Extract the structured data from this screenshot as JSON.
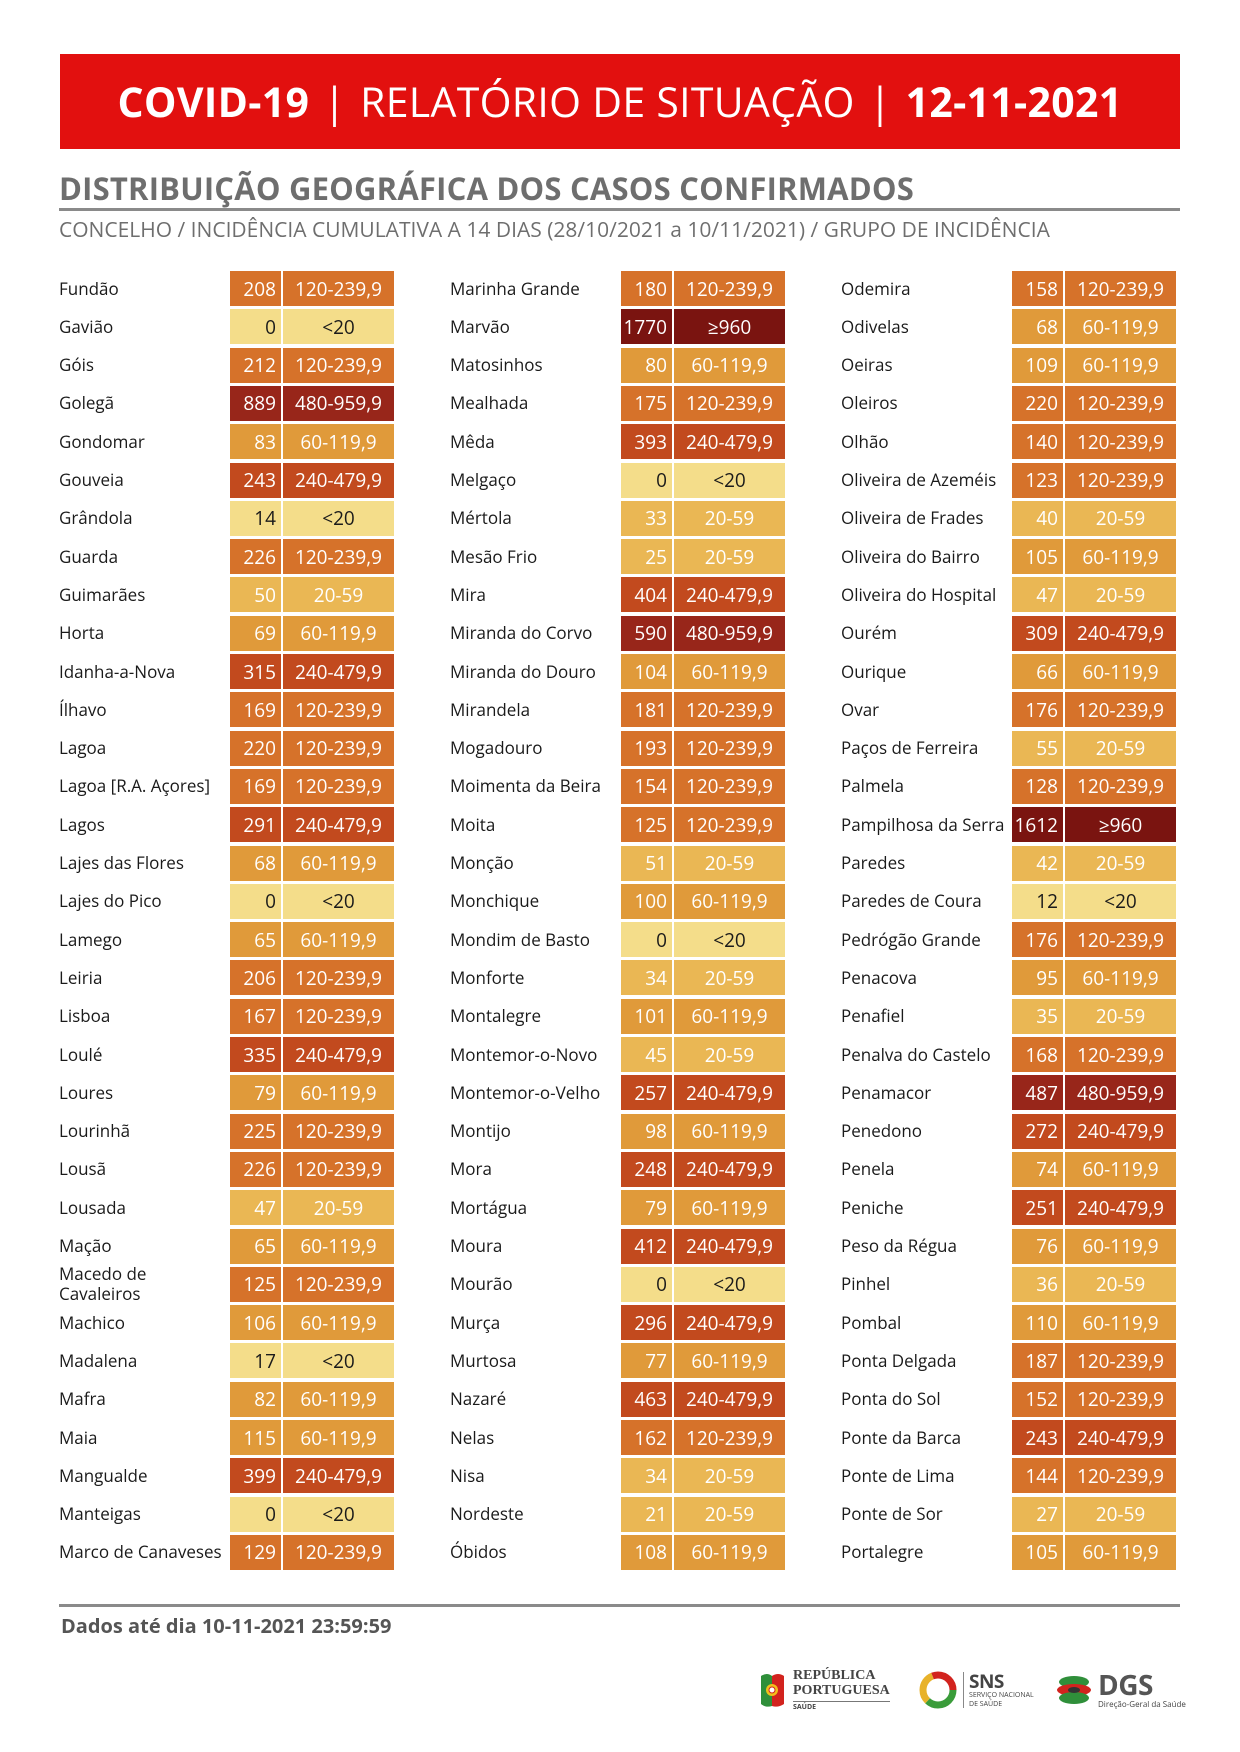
{
  "header": {
    "title_left": "COVID-19",
    "title_mid": "RELATÓRIO DE SITUAÇÃO",
    "title_right": "12-11-2021",
    "separator": "|"
  },
  "section_title": "DISTRIBUIÇÃO GEOGRÁFICA DOS CASOS CONFIRMADOS",
  "subtitle": "CONCELHO / INCIDÊNCIA CUMULATIVA A 14 DIAS (28/10/2021 a 10/11/2021) / GRUPO DE INCIDÊNCIA",
  "colors": {
    "<20": "#f4dd8a",
    "20-59": "#eab754",
    "60-119,9": "#e09a3a",
    "120-239,9": "#d6722a",
    "240-479,9": "#c24a1e",
    "480-959,9": "#98261a",
    "≥960": "#7a1410"
  },
  "columns": [
    [
      {
        "name": "Fundão",
        "value": "208",
        "group": "120-239,9"
      },
      {
        "name": "Gavião",
        "value": "0",
        "group": "<20"
      },
      {
        "name": "Góis",
        "value": "212",
        "group": "120-239,9"
      },
      {
        "name": "Golegã",
        "value": "889",
        "group": "480-959,9"
      },
      {
        "name": "Gondomar",
        "value": "83",
        "group": "60-119,9"
      },
      {
        "name": "Gouveia",
        "value": "243",
        "group": "240-479,9"
      },
      {
        "name": "Grândola",
        "value": "14",
        "group": "<20"
      },
      {
        "name": "Guarda",
        "value": "226",
        "group": "120-239,9"
      },
      {
        "name": "Guimarães",
        "value": "50",
        "group": "20-59"
      },
      {
        "name": "Horta",
        "value": "69",
        "group": "60-119,9"
      },
      {
        "name": "Idanha-a-Nova",
        "value": "315",
        "group": "240-479,9"
      },
      {
        "name": "Ílhavo",
        "value": "169",
        "group": "120-239,9"
      },
      {
        "name": "Lagoa",
        "value": "220",
        "group": "120-239,9"
      },
      {
        "name": "Lagoa [R.A. Açores]",
        "value": "169",
        "group": "120-239,9"
      },
      {
        "name": "Lagos",
        "value": "291",
        "group": "240-479,9"
      },
      {
        "name": "Lajes das Flores",
        "value": "68",
        "group": "60-119,9"
      },
      {
        "name": "Lajes do Pico",
        "value": "0",
        "group": "<20"
      },
      {
        "name": "Lamego",
        "value": "65",
        "group": "60-119,9"
      },
      {
        "name": "Leiria",
        "value": "206",
        "group": "120-239,9"
      },
      {
        "name": "Lisboa",
        "value": "167",
        "group": "120-239,9"
      },
      {
        "name": "Loulé",
        "value": "335",
        "group": "240-479,9"
      },
      {
        "name": "Loures",
        "value": "79",
        "group": "60-119,9"
      },
      {
        "name": "Lourinhã",
        "value": "225",
        "group": "120-239,9"
      },
      {
        "name": "Lousã",
        "value": "226",
        "group": "120-239,9"
      },
      {
        "name": "Lousada",
        "value": "47",
        "group": "20-59"
      },
      {
        "name": "Mação",
        "value": "65",
        "group": "60-119,9"
      },
      {
        "name": "Macedo de Cavaleiros",
        "value": "125",
        "group": "120-239,9"
      },
      {
        "name": "Machico",
        "value": "106",
        "group": "60-119,9"
      },
      {
        "name": "Madalena",
        "value": "17",
        "group": "<20"
      },
      {
        "name": "Mafra",
        "value": "82",
        "group": "60-119,9"
      },
      {
        "name": "Maia",
        "value": "115",
        "group": "60-119,9"
      },
      {
        "name": "Mangualde",
        "value": "399",
        "group": "240-479,9"
      },
      {
        "name": "Manteigas",
        "value": "0",
        "group": "<20"
      },
      {
        "name": "Marco de Canaveses",
        "value": "129",
        "group": "120-239,9"
      }
    ],
    [
      {
        "name": "Marinha Grande",
        "value": "180",
        "group": "120-239,9"
      },
      {
        "name": "Marvão",
        "value": "1770",
        "group": "≥960"
      },
      {
        "name": "Matosinhos",
        "value": "80",
        "group": "60-119,9"
      },
      {
        "name": "Mealhada",
        "value": "175",
        "group": "120-239,9"
      },
      {
        "name": "Mêda",
        "value": "393",
        "group": "240-479,9"
      },
      {
        "name": "Melgaço",
        "value": "0",
        "group": "<20"
      },
      {
        "name": "Mértola",
        "value": "33",
        "group": "20-59"
      },
      {
        "name": "Mesão Frio",
        "value": "25",
        "group": "20-59"
      },
      {
        "name": "Mira",
        "value": "404",
        "group": "240-479,9"
      },
      {
        "name": "Miranda do Corvo",
        "value": "590",
        "group": "480-959,9"
      },
      {
        "name": "Miranda do Douro",
        "value": "104",
        "group": "60-119,9"
      },
      {
        "name": "Mirandela",
        "value": "181",
        "group": "120-239,9"
      },
      {
        "name": "Mogadouro",
        "value": "193",
        "group": "120-239,9"
      },
      {
        "name": "Moimenta da Beira",
        "value": "154",
        "group": "120-239,9"
      },
      {
        "name": "Moita",
        "value": "125",
        "group": "120-239,9"
      },
      {
        "name": "Monção",
        "value": "51",
        "group": "20-59"
      },
      {
        "name": "Monchique",
        "value": "100",
        "group": "60-119,9"
      },
      {
        "name": "Mondim de Basto",
        "value": "0",
        "group": "<20"
      },
      {
        "name": "Monforte",
        "value": "34",
        "group": "20-59"
      },
      {
        "name": "Montalegre",
        "value": "101",
        "group": "60-119,9"
      },
      {
        "name": "Montemor-o-Novo",
        "value": "45",
        "group": "20-59"
      },
      {
        "name": "Montemor-o-Velho",
        "value": "257",
        "group": "240-479,9"
      },
      {
        "name": "Montijo",
        "value": "98",
        "group": "60-119,9"
      },
      {
        "name": "Mora",
        "value": "248",
        "group": "240-479,9"
      },
      {
        "name": "Mortágua",
        "value": "79",
        "group": "60-119,9"
      },
      {
        "name": "Moura",
        "value": "412",
        "group": "240-479,9"
      },
      {
        "name": "Mourão",
        "value": "0",
        "group": "<20"
      },
      {
        "name": "Murça",
        "value": "296",
        "group": "240-479,9"
      },
      {
        "name": "Murtosa",
        "value": "77",
        "group": "60-119,9"
      },
      {
        "name": "Nazaré",
        "value": "463",
        "group": "240-479,9"
      },
      {
        "name": "Nelas",
        "value": "162",
        "group": "120-239,9"
      },
      {
        "name": "Nisa",
        "value": "34",
        "group": "20-59"
      },
      {
        "name": "Nordeste",
        "value": "21",
        "group": "20-59"
      },
      {
        "name": "Óbidos",
        "value": "108",
        "group": "60-119,9"
      }
    ],
    [
      {
        "name": "Odemira",
        "value": "158",
        "group": "120-239,9"
      },
      {
        "name": "Odivelas",
        "value": "68",
        "group": "60-119,9"
      },
      {
        "name": "Oeiras",
        "value": "109",
        "group": "60-119,9"
      },
      {
        "name": "Oleiros",
        "value": "220",
        "group": "120-239,9"
      },
      {
        "name": "Olhão",
        "value": "140",
        "group": "120-239,9"
      },
      {
        "name": "Oliveira de Azeméis",
        "value": "123",
        "group": "120-239,9"
      },
      {
        "name": "Oliveira de Frades",
        "value": "40",
        "group": "20-59"
      },
      {
        "name": "Oliveira do Bairro",
        "value": "105",
        "group": "60-119,9"
      },
      {
        "name": "Oliveira do Hospital",
        "value": "47",
        "group": "20-59"
      },
      {
        "name": "Ourém",
        "value": "309",
        "group": "240-479,9"
      },
      {
        "name": "Ourique",
        "value": "66",
        "group": "60-119,9"
      },
      {
        "name": "Ovar",
        "value": "176",
        "group": "120-239,9"
      },
      {
        "name": "Paços de Ferreira",
        "value": "55",
        "group": "20-59"
      },
      {
        "name": "Palmela",
        "value": "128",
        "group": "120-239,9"
      },
      {
        "name": "Pampilhosa da Serra",
        "value": "1612",
        "group": "≥960"
      },
      {
        "name": "Paredes",
        "value": "42",
        "group": "20-59"
      },
      {
        "name": "Paredes de Coura",
        "value": "12",
        "group": "<20"
      },
      {
        "name": "Pedrógão Grande",
        "value": "176",
        "group": "120-239,9"
      },
      {
        "name": "Penacova",
        "value": "95",
        "group": "60-119,9"
      },
      {
        "name": "Penafiel",
        "value": "35",
        "group": "20-59"
      },
      {
        "name": "Penalva do Castelo",
        "value": "168",
        "group": "120-239,9"
      },
      {
        "name": "Penamacor",
        "value": "487",
        "group": "480-959,9"
      },
      {
        "name": "Penedono",
        "value": "272",
        "group": "240-479,9"
      },
      {
        "name": "Penela",
        "value": "74",
        "group": "60-119,9"
      },
      {
        "name": "Peniche",
        "value": "251",
        "group": "240-479,9"
      },
      {
        "name": "Peso da Régua",
        "value": "76",
        "group": "60-119,9"
      },
      {
        "name": "Pinhel",
        "value": "36",
        "group": "20-59"
      },
      {
        "name": "Pombal",
        "value": "110",
        "group": "60-119,9"
      },
      {
        "name": "Ponta Delgada",
        "value": "187",
        "group": "120-239,9"
      },
      {
        "name": "Ponta do Sol",
        "value": "152",
        "group": "120-239,9"
      },
      {
        "name": "Ponte da Barca",
        "value": "243",
        "group": "240-479,9"
      },
      {
        "name": "Ponte de Lima",
        "value": "144",
        "group": "120-239,9"
      },
      {
        "name": "Ponte de Sor",
        "value": "27",
        "group": "20-59"
      },
      {
        "name": "Portalegre",
        "value": "105",
        "group": "60-119,9"
      }
    ]
  ],
  "footer": {
    "data_until": "Dados até dia 10-11-2021 23:59:59"
  },
  "logos": {
    "republica": {
      "line1": "REPÚBLICA",
      "line2": "PORTUGUESA",
      "line3": "SAÚDE"
    },
    "sns": {
      "title": "SNS",
      "line1": "SERVIÇO NACIONAL",
      "line2": "DE SAÚDE"
    },
    "dgs": {
      "title": "DGS",
      "sub": "Direção-Geral da Saúde"
    }
  }
}
